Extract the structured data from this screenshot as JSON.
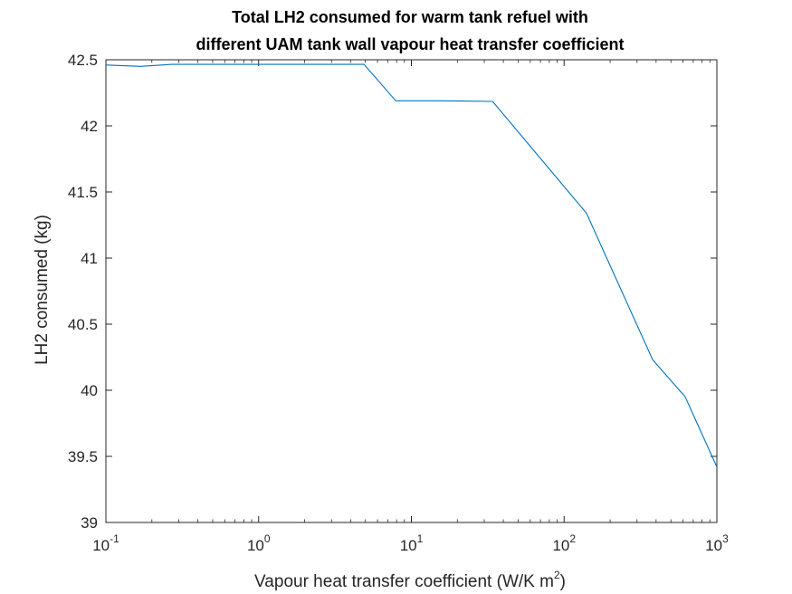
{
  "chart_data": {
    "type": "line",
    "title_lines": [
      "Total LH2 consumed for warm tank refuel with",
      "different UAM tank wall vapour heat transfer coefficient"
    ],
    "xlabel": "Vapour heat transfer coefficient (W/K m",
    "xlabel_superscript": "2",
    "xlabel_suffix": ")",
    "ylabel": "LH2 consumed (kg)",
    "x_scale": "log",
    "xlim": [
      0.1,
      1000
    ],
    "ylim": [
      39,
      42.5
    ],
    "x_ticks": [
      {
        "value": 0.1,
        "base": "10",
        "exp": "-1"
      },
      {
        "value": 1,
        "base": "10",
        "exp": "0"
      },
      {
        "value": 10,
        "base": "10",
        "exp": "1"
      },
      {
        "value": 100,
        "base": "10",
        "exp": "2"
      },
      {
        "value": 1000,
        "base": "10",
        "exp": "3"
      }
    ],
    "y_ticks": [
      {
        "value": 39,
        "label": "39"
      },
      {
        "value": 39.5,
        "label": "39.5"
      },
      {
        "value": 40,
        "label": "40"
      },
      {
        "value": 40.5,
        "label": "40.5"
      },
      {
        "value": 41,
        "label": "41"
      },
      {
        "value": 41.5,
        "label": "41.5"
      },
      {
        "value": 42,
        "label": "42"
      },
      {
        "value": 42.5,
        "label": "42.5"
      }
    ],
    "grid": false,
    "series": [
      {
        "color": "#0072bd",
        "x": [
          0.1,
          0.17,
          0.27,
          0.5,
          1,
          2,
          4.9,
          7.9,
          15,
          34,
          140,
          380,
          620,
          1000
        ],
        "y": [
          42.46,
          42.45,
          42.465,
          42.465,
          42.465,
          42.465,
          42.465,
          42.19,
          42.19,
          42.185,
          41.34,
          40.23,
          39.95,
          39.42
        ]
      }
    ]
  }
}
